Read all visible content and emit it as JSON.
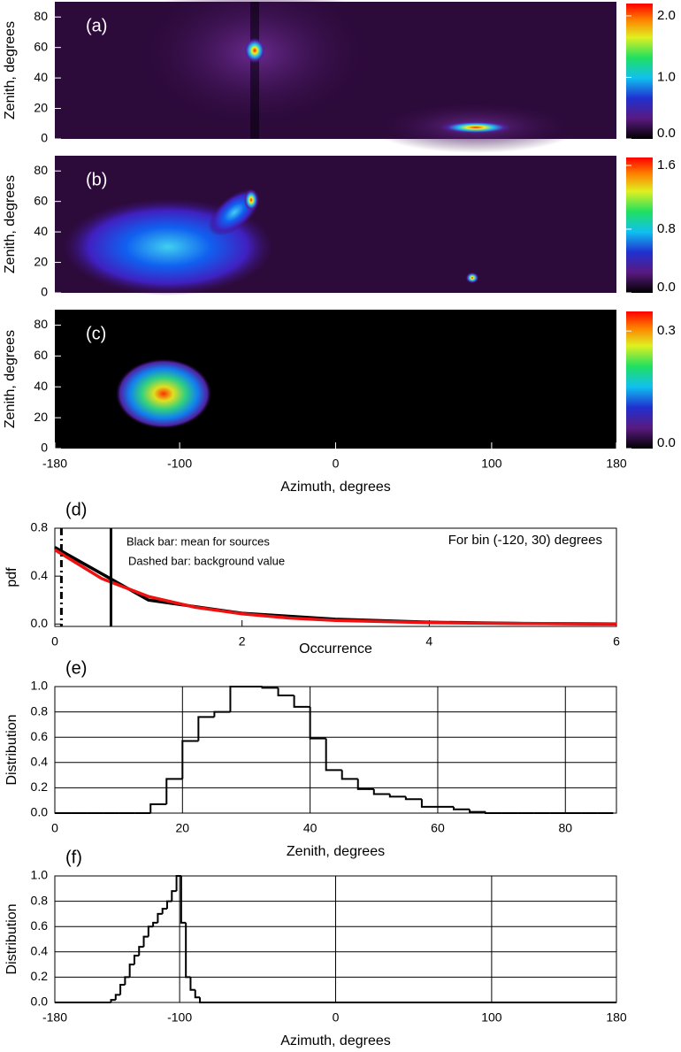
{
  "chart_data": [
    {
      "type": "heatmap",
      "label": "(a)",
      "ylabel": "Zenith, degrees",
      "xlim": [
        -180,
        180
      ],
      "ylim": [
        0,
        90
      ],
      "yticks": [
        0,
        20,
        40,
        60,
        80
      ],
      "clim": [
        0,
        2.2
      ],
      "cticks": [
        {
          "value": 0,
          "label": "0.0"
        },
        {
          "value": 1,
          "label": "1.0"
        },
        {
          "value": 2,
          "label": "2.0"
        }
      ]
    },
    {
      "type": "heatmap",
      "label": "(b)",
      "ylabel": "Zenith, degrees",
      "xlim": [
        -180,
        180
      ],
      "ylim": [
        0,
        90
      ],
      "yticks": [
        0,
        20,
        40,
        60,
        80
      ],
      "clim": [
        0,
        1.7
      ],
      "cticks": [
        {
          "value": 0,
          "label": "0.0"
        },
        {
          "value": 0.8,
          "label": "0.8"
        },
        {
          "value": 1.6,
          "label": "1.6"
        }
      ]
    },
    {
      "type": "heatmap",
      "label": "(c)",
      "ylabel": "Zenith, degrees",
      "xlabel": "Azimuth, degrees",
      "xlim": [
        -180,
        180
      ],
      "ylim": [
        0,
        90
      ],
      "xticks": [
        -180,
        -100,
        0,
        100,
        180
      ],
      "yticks": [
        0,
        20,
        40,
        60,
        80
      ],
      "clim": [
        0,
        0.35
      ],
      "cticks": [
        {
          "value": 0,
          "label": "0.0"
        },
        {
          "value": 0.3,
          "label": "0.3"
        }
      ]
    },
    {
      "type": "line",
      "label": "(d)",
      "ylabel": "pdf",
      "xlabel": "Occurrence",
      "xlim": [
        0,
        6
      ],
      "ylim": [
        -0.02,
        0.8
      ],
      "xticks": [
        0,
        2,
        4,
        6
      ],
      "yticks": [
        {
          "value": 0,
          "label": "0.0"
        },
        {
          "value": 0.4,
          "label": "0.4"
        },
        {
          "value": 0.8,
          "label": "0.8"
        }
      ],
      "series": [
        {
          "color": "#000000",
          "x": [
            0,
            1,
            2,
            3,
            4,
            5,
            6
          ],
          "values": [
            0.64,
            0.2,
            0.09,
            0.04,
            0.015,
            0.005,
            0.0
          ]
        },
        {
          "color": "#ee1111",
          "x": [
            0,
            0.5,
            1,
            1.5,
            2,
            2.5,
            3,
            4,
            5,
            6
          ],
          "values": [
            0.62,
            0.38,
            0.23,
            0.14,
            0.085,
            0.05,
            0.03,
            0.011,
            0.004,
            0.0015
          ]
        }
      ],
      "vlines": [
        {
          "x": 0.6,
          "style": "solid"
        },
        {
          "x": 0.07,
          "style": "dashed"
        }
      ],
      "annotations": [
        "Black bar:  mean for sources",
        "Dashed bar:  background value",
        "For bin (-120, 30) degrees"
      ]
    },
    {
      "type": "histogram",
      "label": "(e)",
      "ylabel": "Distribution",
      "xlabel": "Zenith, degrees",
      "xlim": [
        0,
        88
      ],
      "ylim": [
        0,
        1.0
      ],
      "grid": true,
      "xticks": [
        0,
        20,
        40,
        60,
        80
      ],
      "yticks": [
        {
          "value": 0,
          "label": "0.0"
        },
        {
          "value": 0.2,
          "label": "0.2"
        },
        {
          "value": 0.4,
          "label": "0.4"
        },
        {
          "value": 0.6,
          "label": "0.6"
        },
        {
          "value": 0.8,
          "label": "0.8"
        },
        {
          "value": 1,
          "label": "1.0"
        }
      ],
      "bins": [
        0,
        2.5,
        5,
        7.5,
        10,
        12.5,
        15,
        17.5,
        20,
        22.5,
        25,
        27.5,
        30,
        32.5,
        35,
        37.5,
        40,
        42.5,
        45,
        47.5,
        50,
        52.5,
        55,
        57.5,
        60,
        62.5,
        65,
        67.5,
        70,
        72.5,
        75,
        77.5,
        80,
        82.5,
        85,
        87.5
      ],
      "values": [
        0,
        0,
        0,
        0,
        0,
        0,
        0.07,
        0.27,
        0.57,
        0.76,
        0.8,
        1.0,
        1.0,
        0.99,
        0.93,
        0.84,
        0.59,
        0.34,
        0.27,
        0.19,
        0.15,
        0.13,
        0.11,
        0.05,
        0.05,
        0.03,
        0.01,
        0,
        0,
        0,
        0,
        0,
        0,
        0,
        0
      ]
    },
    {
      "type": "histogram",
      "label": "(f)",
      "ylabel": "Distribution",
      "xlabel": "Azimuth, degrees",
      "xlim": [
        -180,
        180
      ],
      "ylim": [
        0,
        1.0
      ],
      "grid": true,
      "xticks": [
        -180,
        -100,
        0,
        100,
        180
      ],
      "yticks": [
        {
          "value": 0,
          "label": "0.0"
        },
        {
          "value": 0.2,
          "label": "0.2"
        },
        {
          "value": 0.4,
          "label": "0.4"
        },
        {
          "value": 0.6,
          "label": "0.6"
        },
        {
          "value": 0.8,
          "label": "0.8"
        },
        {
          "value": 1,
          "label": "1.0"
        }
      ],
      "bins": [
        -180,
        -144,
        -141,
        -138,
        -135,
        -132,
        -129,
        -126,
        -123,
        -120,
        -117,
        -114,
        -111,
        -108,
        -105,
        -102,
        -99,
        -96,
        -93,
        -90,
        -87,
        180
      ],
      "values": [
        0,
        0.02,
        0.06,
        0.14,
        0.2,
        0.3,
        0.37,
        0.44,
        0.52,
        0.6,
        0.63,
        0.7,
        0.74,
        0.8,
        0.88,
        1.0,
        0.63,
        0.2,
        0.1,
        0.04,
        0
      ]
    }
  ]
}
